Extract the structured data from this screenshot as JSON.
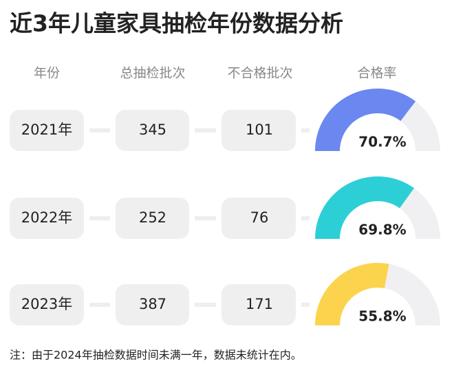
{
  "title": "近3年儿童家具抽检年份数据分析",
  "table": {
    "headers": [
      "年份",
      "总抽检批次",
      "不合格批次",
      "合格率"
    ],
    "rate_range": [
      0,
      100
    ],
    "rows": [
      {
        "year": "2021年",
        "total": 345,
        "failed": 101,
        "rate": 70.7,
        "rate_label": "70.7%",
        "color": "#6b87f0"
      },
      {
        "year": "2022年",
        "total": 252,
        "failed": 76,
        "rate": 69.8,
        "rate_label": "69.8%",
        "color": "#2dcfd6"
      },
      {
        "year": "2023年",
        "total": 387,
        "failed": 171,
        "rate": 55.8,
        "rate_label": "55.8%",
        "color": "#fcd34d"
      }
    ]
  },
  "footnote": "注：由于2024年抽检数据时间未满一年，数据未统计在内。"
}
